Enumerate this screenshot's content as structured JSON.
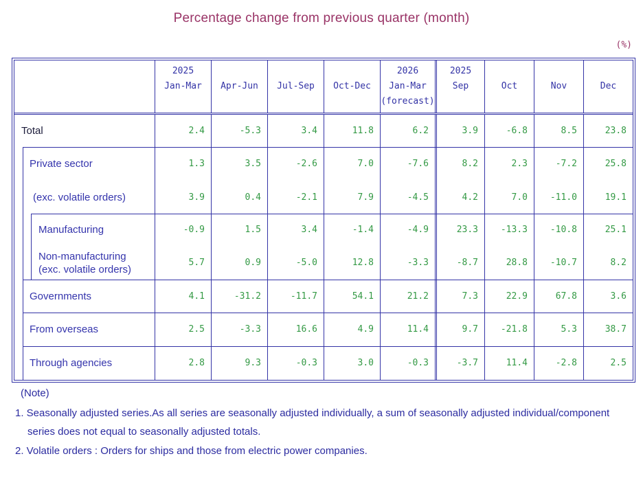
{
  "title": "Percentage change from previous quarter (month)",
  "unit_label": "(%)",
  "colors": {
    "title": "#993366",
    "table_border": "#3333a6",
    "header_text": "#3333a6",
    "row_label_text": "#3434ac",
    "value_text": "#339944",
    "note_text": "#2b2ba0"
  },
  "table": {
    "quarter_headers": [
      {
        "year": "2025",
        "period": "Jan-Mar",
        "note": ""
      },
      {
        "year": "",
        "period": "Apr-Jun",
        "note": ""
      },
      {
        "year": "",
        "period": "Jul-Sep",
        "note": ""
      },
      {
        "year": "",
        "period": "Oct-Dec",
        "note": ""
      },
      {
        "year": "2026",
        "period": "Jan-Mar",
        "note": "(forecast)"
      }
    ],
    "month_headers": [
      {
        "year": "2025",
        "period": "Sep"
      },
      {
        "year": "",
        "period": "Oct"
      },
      {
        "year": "",
        "period": "Nov"
      },
      {
        "year": "",
        "period": "Dec"
      }
    ],
    "rows": [
      {
        "label": "Total",
        "label2": "",
        "q": [
          "2.4",
          "-5.3",
          "3.4",
          "11.8",
          "6.2"
        ],
        "m": [
          "3.9",
          "-6.8",
          "8.5",
          "23.8"
        ]
      },
      {
        "label": "Private sector",
        "label2": "",
        "q": [
          "1.3",
          "3.5",
          "-2.6",
          "7.0",
          "-7.6"
        ],
        "m": [
          "8.2",
          "2.3",
          "-7.2",
          "25.8"
        ]
      },
      {
        "label": "(exc. volatile orders)",
        "label2": "",
        "q": [
          "3.9",
          "0.4",
          "-2.1",
          "7.9",
          "-4.5"
        ],
        "m": [
          "4.2",
          "7.0",
          "-11.0",
          "19.1"
        ]
      },
      {
        "label": "Manufacturing",
        "label2": "",
        "q": [
          "-0.9",
          "1.5",
          "3.4",
          "-1.4",
          "-4.9"
        ],
        "m": [
          "23.3",
          "-13.3",
          "-10.8",
          "25.1"
        ]
      },
      {
        "label": "Non-manufacturing",
        "label2": "(exc. volatile orders)",
        "q": [
          "5.7",
          "0.9",
          "-5.0",
          "12.8",
          "-3.3"
        ],
        "m": [
          "-8.7",
          "28.8",
          "-10.7",
          "8.2"
        ]
      },
      {
        "label": "Governments",
        "label2": "",
        "q": [
          "4.1",
          "-31.2",
          "-11.7",
          "54.1",
          "21.2"
        ],
        "m": [
          "7.3",
          "22.9",
          "67.8",
          "3.6"
        ]
      },
      {
        "label": "From overseas",
        "label2": "",
        "q": [
          "2.5",
          "-3.3",
          "16.6",
          "4.9",
          "11.4"
        ],
        "m": [
          "9.7",
          "-21.8",
          "5.3",
          "38.7"
        ]
      },
      {
        "label": "Through agencies",
        "label2": "",
        "q": [
          "2.8",
          "9.3",
          "-0.3",
          "3.0",
          "-0.3"
        ],
        "m": [
          "-3.7",
          "11.4",
          "-2.8",
          "2.5"
        ]
      }
    ]
  },
  "notes": {
    "heading": "(Note)",
    "items": [
      "1. Seasonally adjusted series.As all series are seasonally adjusted individually,  a sum of seasonally adjusted individual/component series does not equal to seasonally adjusted totals.",
      "2. Volatile orders : Orders for ships and those from electric power companies."
    ]
  }
}
